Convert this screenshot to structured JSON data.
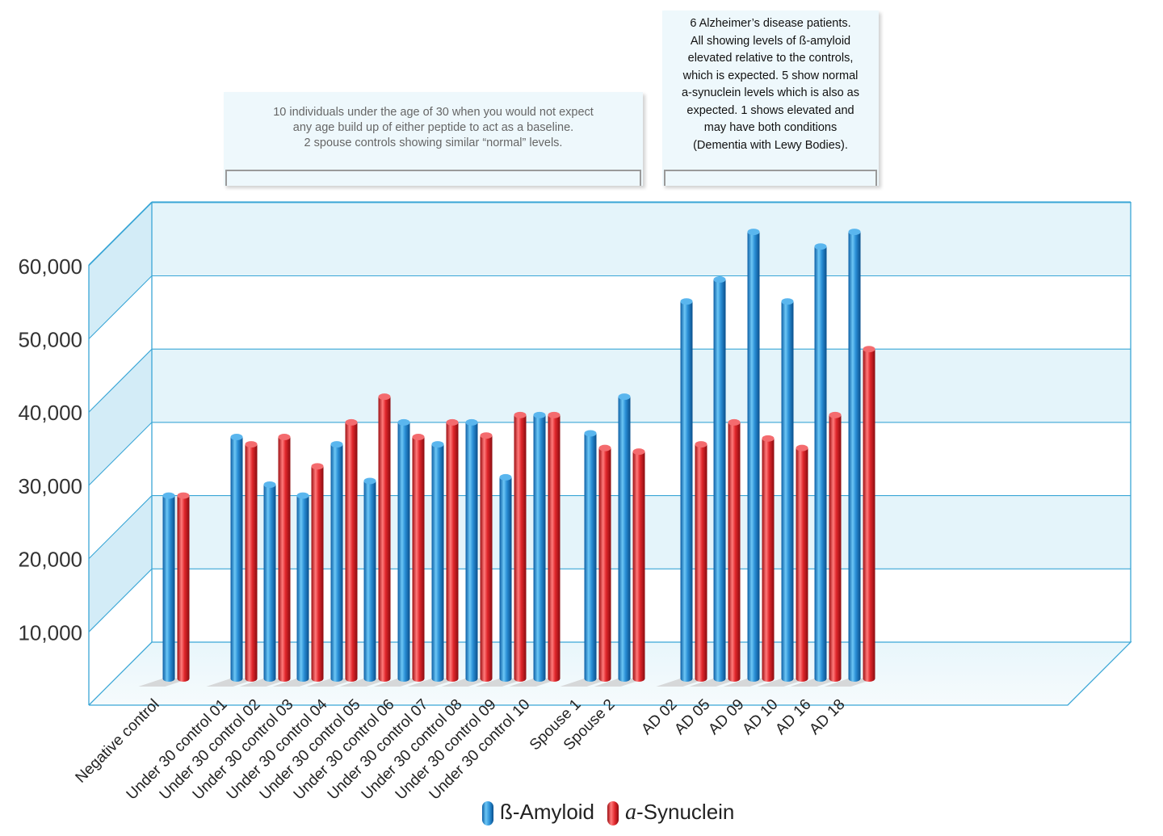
{
  "chart_data": {
    "type": "bar",
    "style": "3d-cylinder",
    "categories": [
      "Negative control",
      "Under 30 control 01",
      "Under 30 control 02",
      "Under 30 control 03",
      "Under 30 control 04",
      "Under 30 control 05",
      "Under 30 control 06",
      "Under 30 control 07",
      "Under 30 control 08",
      "Under 30 control 09",
      "Under 30 control 10",
      "Spouse 1",
      "Spouse 2",
      "AD 02",
      "AD 05",
      "AD 09",
      "AD 10",
      "AD 16",
      "AD 18"
    ],
    "series": [
      {
        "name": "ß-Amyloid",
        "color": "#2a8fd6",
        "values": [
          20000,
          28000,
          21500,
          20000,
          27000,
          22000,
          30000,
          27000,
          30000,
          22500,
          31000,
          28500,
          33500,
          46500,
          49500,
          56000,
          46500,
          54000,
          56000
        ]
      },
      {
        "name": "a-Synuclein",
        "color": "#e0262b",
        "values": [
          20000,
          27000,
          28000,
          24000,
          30000,
          33500,
          28000,
          30000,
          28200,
          31000,
          31000,
          26500,
          26000,
          27000,
          30000,
          27800,
          26500,
          31000,
          40000
        ]
      }
    ],
    "yticks": [
      "10,000",
      "20,000",
      "30,000",
      "40,000",
      "50,000",
      "60,000"
    ],
    "ylim": [
      0,
      60000
    ],
    "grid": true,
    "legend_position": "bottom-center",
    "annotations": [
      {
        "id": "under30",
        "lines": [
          "10 individuals under the age of 30 when you would not expect",
          "any age build up of either peptide to act as a baseline.",
          "2 spouse controls showing similar “normal” levels."
        ]
      },
      {
        "id": "ad",
        "lines": [
          "6 Alzheimer’s disease patients.",
          "All showing levels of ß-amyloid",
          "elevated relative to the controls,",
          "which is expected. 5 show normal",
          "a-synuclein levels which is also as",
          "expected. 1 shows elevated and",
          "may have both conditions",
          "(Dementia with Lewy Bodies)."
        ]
      }
    ]
  },
  "legend": {
    "beta_label": "ß-Amyloid",
    "alpha_symbol": "a",
    "alpha_rest": "-Synuclein",
    "beta_color": "#2a8fd6",
    "alpha_color": "#e0262b",
    "beta_icon": "blue-cylinder-icon",
    "alpha_icon": "red-cylinder-icon"
  }
}
